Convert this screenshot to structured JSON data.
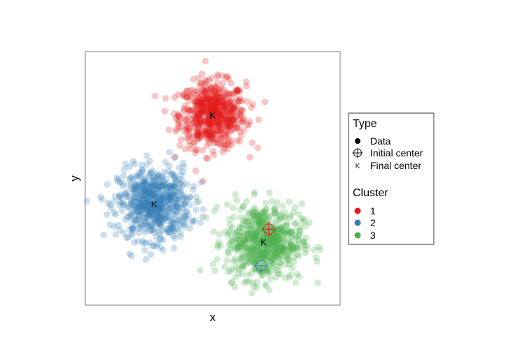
{
  "chart_data": {
    "type": "scatter",
    "title": "",
    "xlabel": "x",
    "ylabel": "y",
    "xlim": [
      0,
      10
    ],
    "ylim": [
      0,
      10
    ],
    "grid": false,
    "axis_ticks": false,
    "point_alpha": 0.25,
    "series": [
      {
        "name": "1",
        "color": "#e41a1c",
        "center": [
          5.0,
          7.5
        ],
        "spread": 0.65,
        "count": 650
      },
      {
        "name": "2",
        "color": "#377eb8",
        "center": [
          2.7,
          4.0
        ],
        "spread": 0.7,
        "count": 650
      },
      {
        "name": "3",
        "color": "#4daf4a",
        "center": [
          7.0,
          2.5
        ],
        "spread": 0.75,
        "count": 650
      }
    ],
    "initial_centers": [
      {
        "cluster": "1",
        "color": "#e41a1c",
        "x": 7.2,
        "y": 3.0
      },
      {
        "cluster": "2",
        "color": "#377eb8",
        "x": 6.9,
        "y": 1.55
      }
    ],
    "final_centers": [
      {
        "cluster": "1",
        "label": "K",
        "x": 5.0,
        "y": 7.5
      },
      {
        "cluster": "2",
        "label": "K",
        "x": 2.7,
        "y": 4.0
      },
      {
        "cluster": "3",
        "label": "K",
        "x": 7.0,
        "y": 2.5
      }
    ],
    "legend": {
      "placement": "right",
      "type_title": "Type",
      "type_entries": [
        "Data",
        "Initial center",
        "Final center"
      ],
      "type_final_symbol": "K",
      "cluster_title": "Cluster",
      "cluster_entries": [
        {
          "label": "1",
          "color": "#e41a1c"
        },
        {
          "label": "2",
          "color": "#377eb8"
        },
        {
          "label": "3",
          "color": "#4daf4a"
        }
      ]
    }
  }
}
